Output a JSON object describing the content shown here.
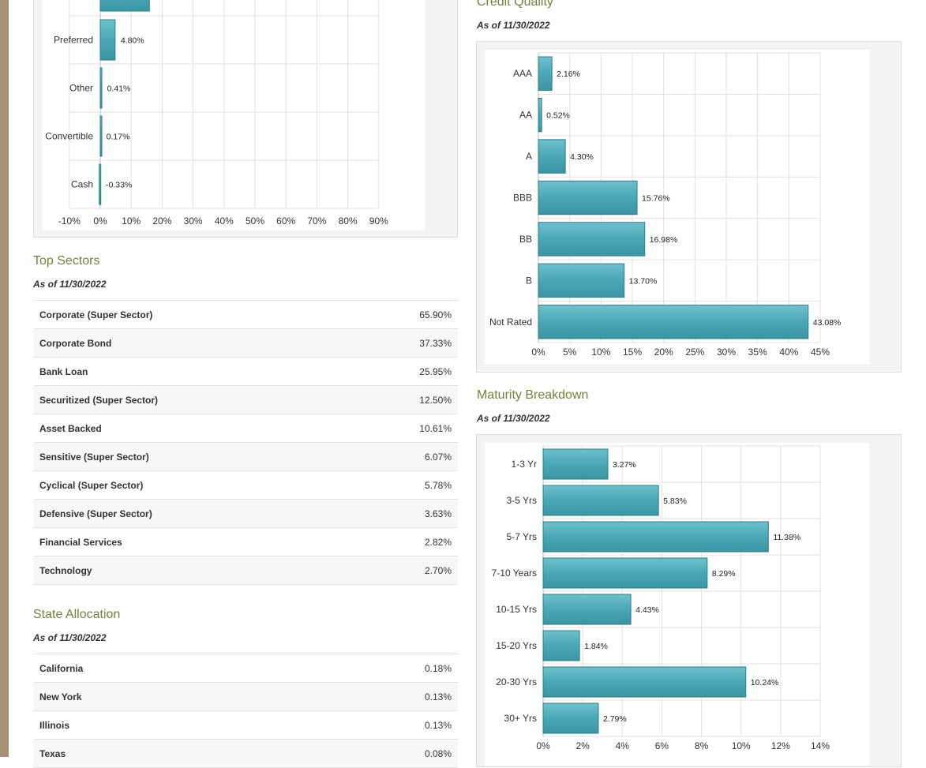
{
  "colors": {
    "accent": "#6d8535",
    "bar": "#4aa7b6",
    "bar_edge": "#2a7f8d",
    "sidebar": "#a69377"
  },
  "asset_chart": {
    "categories": [
      "Preferred",
      "Other",
      "Convertible",
      "Cash"
    ],
    "values": [
      4.8,
      0.41,
      0.17,
      -0.33
    ],
    "value_labels": [
      "4.80%",
      "0.41%",
      "0.17%",
      "-0.33%"
    ],
    "partial_bar_value": 15.9,
    "xlim": [
      -10,
      90
    ],
    "ticks": [
      "-10%",
      "0%",
      "10%",
      "20%",
      "30%",
      "40%",
      "50%",
      "60%",
      "70%",
      "80%",
      "90%"
    ]
  },
  "top_sectors": {
    "title": "Top Sectors",
    "as_of": "As of 11/30/2022",
    "rows": [
      {
        "label": "Corporate (Super Sector)",
        "value": "65.90%"
      },
      {
        "label": "Corporate Bond",
        "value": "37.33%"
      },
      {
        "label": "Bank Loan",
        "value": "25.95%"
      },
      {
        "label": "Securitized (Super Sector)",
        "value": "12.50%"
      },
      {
        "label": "Asset Backed",
        "value": "10.61%"
      },
      {
        "label": "Sensitive (Super Sector)",
        "value": "6.07%"
      },
      {
        "label": "Cyclical (Super Sector)",
        "value": "5.78%"
      },
      {
        "label": "Defensive (Super Sector)",
        "value": "3.63%"
      },
      {
        "label": "Financial Services",
        "value": "2.82%"
      },
      {
        "label": "Technology",
        "value": "2.70%"
      }
    ]
  },
  "state_allocation": {
    "title": "State Allocation",
    "as_of": "As of 11/30/2022",
    "rows": [
      {
        "label": "California",
        "value": "0.18%"
      },
      {
        "label": "New York",
        "value": "0.13%"
      },
      {
        "label": "Illinois",
        "value": "0.13%"
      },
      {
        "label": "Texas",
        "value": "0.08%"
      }
    ]
  },
  "credit_quality": {
    "title": "Credit Quality",
    "as_of": "As of 11/30/2022"
  },
  "maturity_breakdown": {
    "title": "Maturity Breakdown",
    "as_of": "As of 11/30/2022"
  },
  "chart_data": [
    {
      "type": "bar",
      "orientation": "horizontal",
      "categories": [
        "AAA",
        "AA",
        "A",
        "BBB",
        "BB",
        "B",
        "Not Rated"
      ],
      "values": [
        2.16,
        0.52,
        4.3,
        15.76,
        16.98,
        13.7,
        43.08
      ],
      "value_labels": [
        "2.16%",
        "0.52%",
        "4.30%",
        "15.76%",
        "16.98%",
        "13.70%",
        "43.08%"
      ],
      "xlim": [
        0,
        45
      ],
      "ticks": [
        "0%",
        "5%",
        "10%",
        "15%",
        "20%",
        "25%",
        "30%",
        "35%",
        "40%",
        "45%"
      ],
      "grid": true
    },
    {
      "type": "bar",
      "orientation": "horizontal",
      "categories": [
        "1-3 Yr",
        "3-5 Yrs",
        "5-7 Yrs",
        "7-10 Years",
        "10-15 Yrs",
        "15-20 Yrs",
        "20-30 Yrs",
        "30+ Yrs"
      ],
      "values": [
        3.27,
        5.83,
        11.38,
        8.29,
        4.43,
        1.84,
        10.24,
        2.79
      ],
      "value_labels": [
        "3.27%",
        "5.83%",
        "11.38%",
        "8.29%",
        "4.43%",
        "1.84%",
        "10.24%",
        "2.79%"
      ],
      "xlim": [
        0,
        14
      ],
      "ticks": [
        "0%",
        "2%",
        "4%",
        "6%",
        "8%",
        "10%",
        "12%",
        "14%"
      ],
      "grid": true
    }
  ]
}
